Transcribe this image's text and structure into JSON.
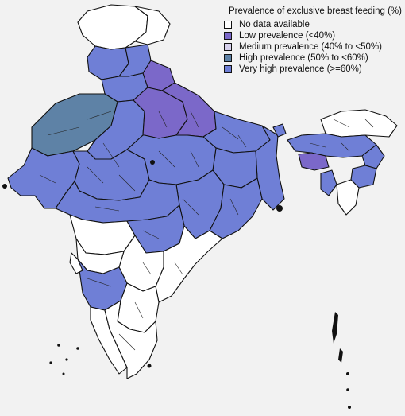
{
  "legend": {
    "title": "Prevalence of exclusive breast feeding (%)",
    "items": [
      {
        "label": "No data available",
        "color": "#ffffff"
      },
      {
        "label": "Low prevalence (<40%)",
        "color": "#7b68c9"
      },
      {
        "label": "Medium prevalence (40% to <50%)",
        "color": "#d6d0ec"
      },
      {
        "label": "High prevalence (50% to <60%)",
        "color": "#5e82a6"
      },
      {
        "label": "Very high prevalence (>=60%)",
        "color": "#6f7fd6"
      }
    ]
  }
}
